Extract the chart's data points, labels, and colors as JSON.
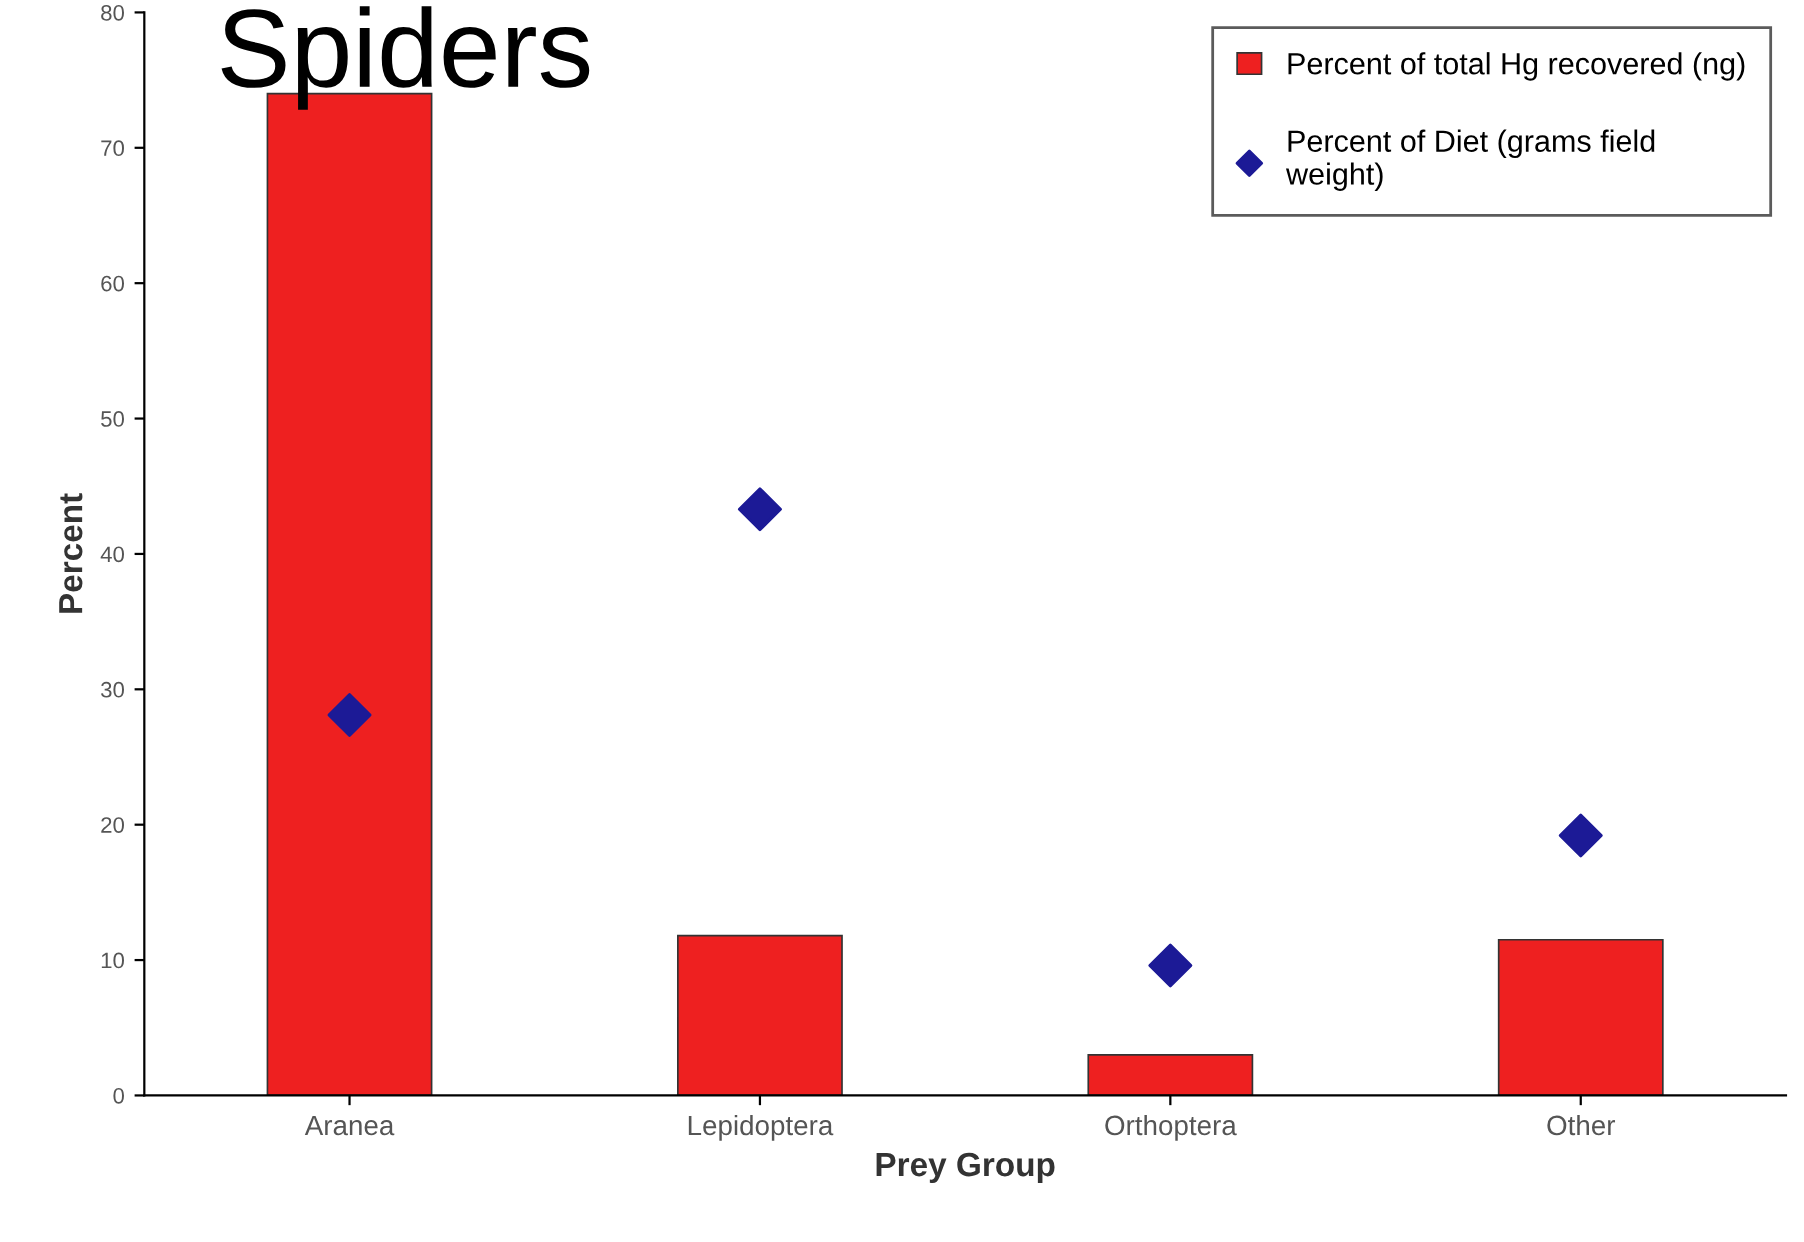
{
  "chart_data": {
    "type": "bar",
    "title": "Spiders",
    "xlabel": "Prey Group",
    "ylabel": "Percent",
    "categories": [
      "Aranea",
      "Lepidoptera",
      "Orthoptera",
      "Other"
    ],
    "series": [
      {
        "name": "Percent of total Hg recovered (ng)",
        "color": "#ee2020",
        "values": [
          74,
          11.8,
          3.0,
          11.5
        ]
      },
      {
        "name": "Percent of Diet (grams field\nweight)",
        "type": "scatter",
        "color": "#1c1a96",
        "marker": "diamond",
        "values": [
          28.1,
          43.3,
          9.6,
          19.2
        ]
      }
    ],
    "ylim": [
      0,
      80
    ],
    "yticks": [
      0,
      10,
      20,
      30,
      40,
      50,
      60,
      70,
      80
    ],
    "grid": false,
    "legend": "top right"
  }
}
